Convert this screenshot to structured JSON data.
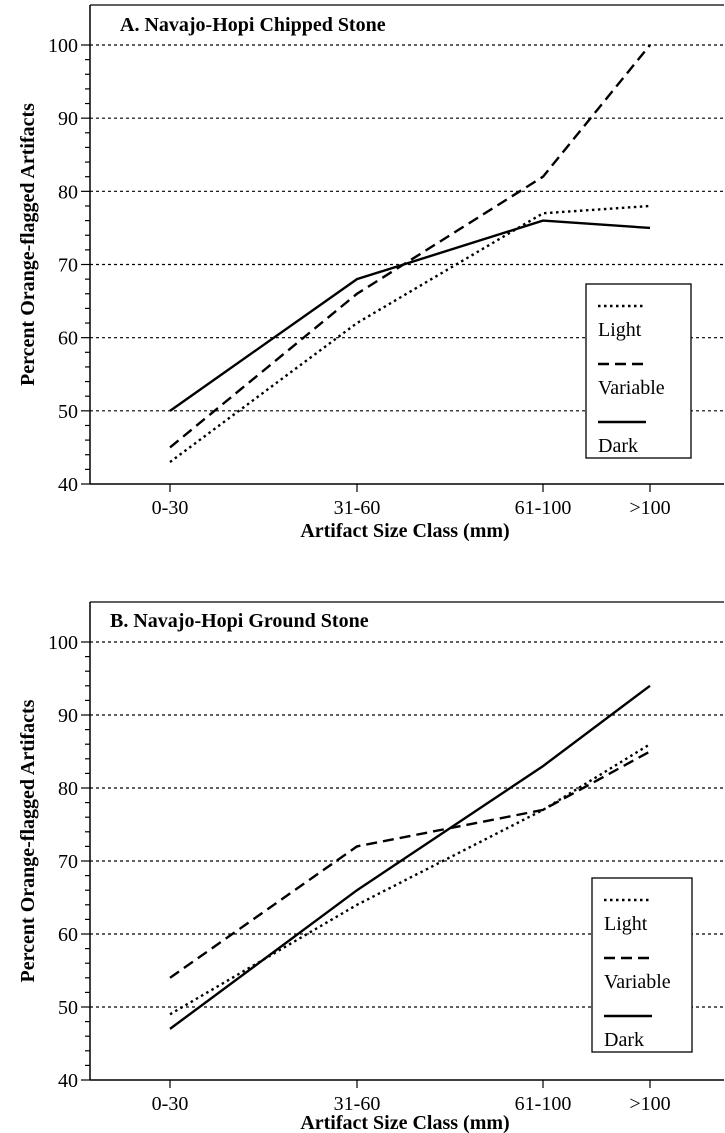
{
  "chart_data": [
    {
      "type": "line",
      "title": "A. Navajo-Hopi Chipped Stone",
      "xlabel": "Artifact Size Class (mm)",
      "ylabel": "Percent Orange-flagged Artifacts",
      "categories": [
        "0-30",
        "31-60",
        "61-100",
        ">100"
      ],
      "ylim": [
        40,
        100
      ],
      "yticks": [
        40,
        50,
        60,
        70,
        80,
        90,
        100
      ],
      "grid": "horizontal dotted",
      "legend_position": "right",
      "series": [
        {
          "name": "Light",
          "style": "dotted",
          "values": [
            43,
            62,
            77,
            78
          ]
        },
        {
          "name": "Variable",
          "style": "dashed",
          "values": [
            45,
            66,
            82,
            100
          ]
        },
        {
          "name": "Dark",
          "style": "solid",
          "values": [
            50,
            68,
            76,
            75
          ]
        }
      ]
    },
    {
      "type": "line",
      "title": "B. Navajo-Hopi Ground Stone",
      "xlabel": "Artifact Size Class (mm)",
      "ylabel": "Percent Orange-flagged Artifacts",
      "categories": [
        "0-30",
        "31-60",
        "61-100",
        ">100"
      ],
      "ylim": [
        40,
        100
      ],
      "yticks": [
        40,
        50,
        60,
        70,
        80,
        90,
        100
      ],
      "grid": "horizontal dotted",
      "legend_position": "bottom-right",
      "series": [
        {
          "name": "Light",
          "style": "dotted",
          "values": [
            49,
            64,
            77,
            86
          ]
        },
        {
          "name": "Variable",
          "style": "dashed",
          "values": [
            54,
            72,
            77,
            85
          ]
        },
        {
          "name": "Dark",
          "style": "solid",
          "values": [
            47,
            66,
            83,
            94
          ]
        }
      ]
    }
  ]
}
